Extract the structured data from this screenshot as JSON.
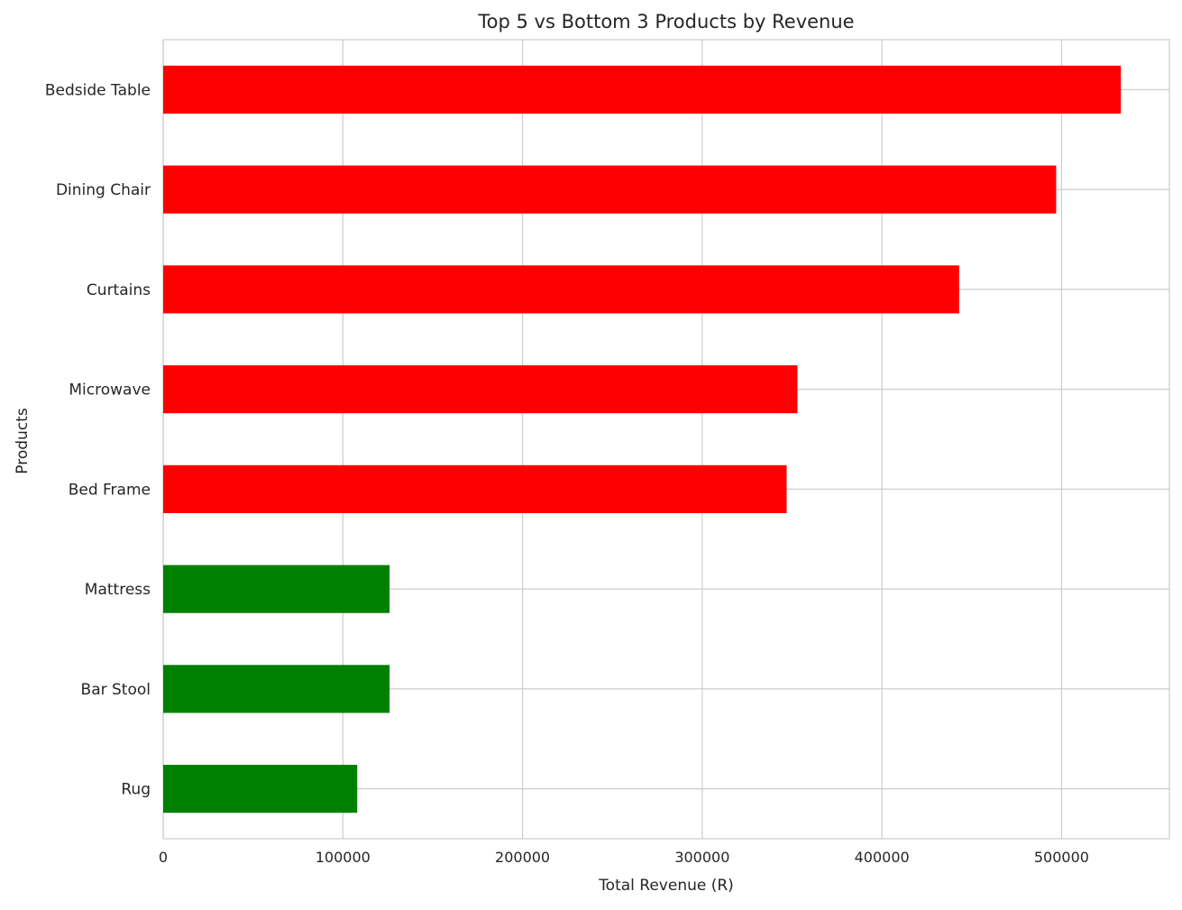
{
  "chart_data": {
    "type": "bar",
    "orientation": "horizontal",
    "title": "Top 5 vs Bottom 3 Products by Revenue",
    "xlabel": "Total Revenue (R)",
    "ylabel": "Products",
    "categories": [
      "Bedside Table",
      "Dining Chair",
      "Curtains",
      "Microwave",
      "Bed Frame",
      "Mattress",
      "Bar Stool",
      "Rug"
    ],
    "values": [
      533000,
      497000,
      443000,
      353000,
      347000,
      126000,
      126000,
      108000
    ],
    "bar_colors": [
      "#ff0000",
      "#ff0000",
      "#ff0000",
      "#ff0000",
      "#ff0000",
      "#008000",
      "#008000",
      "#008000"
    ],
    "xlim": [
      0,
      560000
    ],
    "xticks": [
      0,
      100000,
      200000,
      300000,
      400000,
      500000
    ],
    "xtick_labels": [
      "0",
      "100000",
      "200000",
      "300000",
      "400000",
      "500000"
    ],
    "grid": true,
    "legend": "none"
  }
}
